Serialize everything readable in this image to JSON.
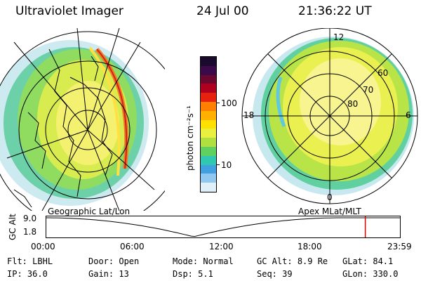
{
  "header": {
    "title": "Ultraviolet Imager",
    "date": "24 Jul 00",
    "time": "21:36:22 UT"
  },
  "left_panel": {
    "label": "Geographic Lat/Lon"
  },
  "right_panel": {
    "label": "Apex MLat/MLT",
    "mlt_labels": [
      "12",
      "18",
      "6",
      "0"
    ],
    "lat_labels": [
      "60",
      "70",
      "80"
    ]
  },
  "colorbar": {
    "unit_label": "photon cm⁻²s⁻¹",
    "ticks": [
      "100",
      "10"
    ],
    "colors": [
      "#1a0a2e",
      "#3a0a4a",
      "#6a0830",
      "#b00020",
      "#e82010",
      "#ff8000",
      "#ffb000",
      "#ffe000",
      "#eaf040",
      "#b0e040",
      "#60d060",
      "#30c8b0",
      "#40a0e0",
      "#90c8f0",
      "#e0f0f8"
    ]
  },
  "timeline": {
    "ylabel": "GC Alt",
    "y_ticks": [
      "9.0",
      "1.8"
    ],
    "x_ticks": [
      "00:00",
      "06:00",
      "12:00",
      "18:00",
      "23:59"
    ],
    "marker_hour": 21.61
  },
  "info": {
    "row1": [
      {
        "key": "Flt:",
        "value": "LBHL"
      },
      {
        "key": "Door:",
        "value": "Open"
      },
      {
        "key": "Mode:",
        "value": "Normal"
      },
      {
        "key": "GC Alt:",
        "value": "8.9 Re"
      },
      {
        "key": "GLat:",
        "value": "84.1"
      }
    ],
    "row2": [
      {
        "key": "IP:",
        "value": "36.0"
      },
      {
        "key": "Gain:",
        "value": "13"
      },
      {
        "key": "Dsp:",
        "value": "5.1"
      },
      {
        "key": "Seq:",
        "value": "39"
      },
      {
        "key": "GLon:",
        "value": "330.0"
      }
    ]
  }
}
